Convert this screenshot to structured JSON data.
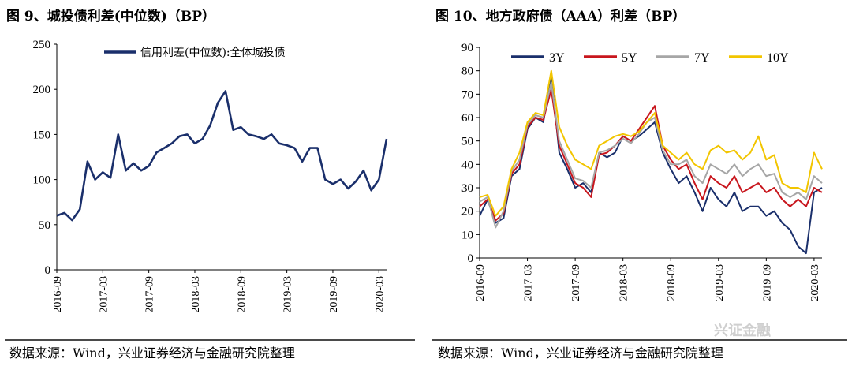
{
  "left": {
    "title": "图 9、城投债利差(中位数)（BP）",
    "source": "数据来源：Wind，兴业证券经济与金融研究院整理"
  },
  "right": {
    "title": "图 10、地方政府债（AAA）利差（BP）",
    "source": "数据来源：Wind，兴业证券经济与金融研究院整理"
  },
  "watermark": "兴证金融",
  "chart_data": [
    {
      "type": "line",
      "title": "",
      "xlabel": "",
      "ylabel": "",
      "ylim": [
        0,
        250
      ],
      "yticks": [
        0,
        50,
        100,
        150,
        200,
        250
      ],
      "xticks": [
        "2016-09",
        "2017-03",
        "2017-09",
        "2018-03",
        "2018-09",
        "2019-03",
        "2019-09",
        "2020-03"
      ],
      "xrange": [
        "2016-09",
        "2020-04"
      ],
      "legend_position": "top-right",
      "series": [
        {
          "name": "信用利差(中位数):全体城投债",
          "color": "#1a2f6b",
          "points": [
            [
              "2016-09",
              60
            ],
            [
              "2016-10",
              63
            ],
            [
              "2016-11",
              55
            ],
            [
              "2016-12",
              67
            ],
            [
              "2017-01",
              120
            ],
            [
              "2017-02",
              100
            ],
            [
              "2017-03",
              108
            ],
            [
              "2017-04",
              102
            ],
            [
              "2017-05",
              150
            ],
            [
              "2017-06",
              110
            ],
            [
              "2017-07",
              118
            ],
            [
              "2017-08",
              110
            ],
            [
              "2017-09",
              115
            ],
            [
              "2017-10",
              130
            ],
            [
              "2017-11",
              135
            ],
            [
              "2017-12",
              140
            ],
            [
              "2018-01",
              148
            ],
            [
              "2018-02",
              150
            ],
            [
              "2018-03",
              140
            ],
            [
              "2018-04",
              145
            ],
            [
              "2018-05",
              160
            ],
            [
              "2018-06",
              185
            ],
            [
              "2018-07",
              198
            ],
            [
              "2018-08",
              155
            ],
            [
              "2018-09",
              158
            ],
            [
              "2018-10",
              150
            ],
            [
              "2018-11",
              148
            ],
            [
              "2018-12",
              145
            ],
            [
              "2019-01",
              150
            ],
            [
              "2019-02",
              140
            ],
            [
              "2019-03",
              138
            ],
            [
              "2019-04",
              135
            ],
            [
              "2019-05",
              120
            ],
            [
              "2019-06",
              135
            ],
            [
              "2019-07",
              135
            ],
            [
              "2019-08",
              100
            ],
            [
              "2019-09",
              95
            ],
            [
              "2019-10",
              100
            ],
            [
              "2019-11",
              90
            ],
            [
              "2019-12",
              98
            ],
            [
              "2020-01",
              110
            ],
            [
              "2020-02",
              88
            ],
            [
              "2020-03",
              100
            ],
            [
              "2020-04",
              145
            ]
          ]
        }
      ]
    },
    {
      "type": "line",
      "title": "",
      "xlabel": "",
      "ylabel": "",
      "ylim": [
        0,
        90
      ],
      "yticks": [
        0,
        10,
        20,
        30,
        40,
        50,
        60,
        70,
        80,
        90
      ],
      "xticks": [
        "2016-09",
        "2017-03",
        "2017-09",
        "2018-03",
        "2018-09",
        "2019-03",
        "2019-09",
        "2020-03"
      ],
      "xrange": [
        "2016-09",
        "2020-04"
      ],
      "legend_position": "top",
      "series": [
        {
          "name": "3Y",
          "color": "#1a2f6b",
          "points": [
            [
              "2016-09",
              18
            ],
            [
              "2016-10",
              25
            ],
            [
              "2016-11",
              15
            ],
            [
              "2016-12",
              17
            ],
            [
              "2017-01",
              35
            ],
            [
              "2017-02",
              38
            ],
            [
              "2017-03",
              55
            ],
            [
              "2017-04",
              60
            ],
            [
              "2017-05",
              58
            ],
            [
              "2017-06",
              78
            ],
            [
              "2017-07",
              45
            ],
            [
              "2017-08",
              38
            ],
            [
              "2017-09",
              30
            ],
            [
              "2017-10",
              32
            ],
            [
              "2017-11",
              28
            ],
            [
              "2017-12",
              45
            ],
            [
              "2018-01",
              43
            ],
            [
              "2018-02",
              45
            ],
            [
              "2018-03",
              52
            ],
            [
              "2018-04",
              50
            ],
            [
              "2018-05",
              52
            ],
            [
              "2018-06",
              55
            ],
            [
              "2018-07",
              58
            ],
            [
              "2018-08",
              45
            ],
            [
              "2018-09",
              38
            ],
            [
              "2018-10",
              32
            ],
            [
              "2018-11",
              35
            ],
            [
              "2018-12",
              28
            ],
            [
              "2019-01",
              20
            ],
            [
              "2019-02",
              30
            ],
            [
              "2019-03",
              25
            ],
            [
              "2019-04",
              22
            ],
            [
              "2019-05",
              28
            ],
            [
              "2019-06",
              20
            ],
            [
              "2019-07",
              22
            ],
            [
              "2019-08",
              22
            ],
            [
              "2019-09",
              18
            ],
            [
              "2019-10",
              20
            ],
            [
              "2019-11",
              15
            ],
            [
              "2019-12",
              12
            ],
            [
              "2020-01",
              5
            ],
            [
              "2020-02",
              2
            ],
            [
              "2020-03",
              28
            ],
            [
              "2020-04",
              30
            ]
          ]
        },
        {
          "name": "5Y",
          "color": "#c8161d",
          "points": [
            [
              "2016-09",
              22
            ],
            [
              "2016-10",
              25
            ],
            [
              "2016-11",
              16
            ],
            [
              "2016-12",
              19
            ],
            [
              "2017-01",
              36
            ],
            [
              "2017-02",
              40
            ],
            [
              "2017-03",
              56
            ],
            [
              "2017-04",
              60
            ],
            [
              "2017-05",
              59
            ],
            [
              "2017-06",
              72
            ],
            [
              "2017-07",
              48
            ],
            [
              "2017-08",
              40
            ],
            [
              "2017-09",
              32
            ],
            [
              "2017-10",
              30
            ],
            [
              "2017-11",
              26
            ],
            [
              "2017-12",
              44
            ],
            [
              "2018-01",
              45
            ],
            [
              "2018-02",
              48
            ],
            [
              "2018-03",
              52
            ],
            [
              "2018-04",
              50
            ],
            [
              "2018-05",
              55
            ],
            [
              "2018-06",
              60
            ],
            [
              "2018-07",
              65
            ],
            [
              "2018-08",
              48
            ],
            [
              "2018-09",
              42
            ],
            [
              "2018-10",
              38
            ],
            [
              "2018-11",
              40
            ],
            [
              "2018-12",
              32
            ],
            [
              "2019-01",
              25
            ],
            [
              "2019-02",
              35
            ],
            [
              "2019-03",
              32
            ],
            [
              "2019-04",
              30
            ],
            [
              "2019-05",
              35
            ],
            [
              "2019-06",
              28
            ],
            [
              "2019-07",
              30
            ],
            [
              "2019-08",
              32
            ],
            [
              "2019-09",
              28
            ],
            [
              "2019-10",
              30
            ],
            [
              "2019-11",
              25
            ],
            [
              "2019-12",
              22
            ],
            [
              "2020-01",
              25
            ],
            [
              "2020-02",
              22
            ],
            [
              "2020-03",
              30
            ],
            [
              "2020-04",
              28
            ]
          ]
        },
        {
          "name": "7Y",
          "color": "#a6a6a6",
          "points": [
            [
              "2016-09",
              24
            ],
            [
              "2016-10",
              26
            ],
            [
              "2016-11",
              13
            ],
            [
              "2016-12",
              20
            ],
            [
              "2017-01",
              37
            ],
            [
              "2017-02",
              42
            ],
            [
              "2017-03",
              57
            ],
            [
              "2017-04",
              61
            ],
            [
              "2017-05",
              60
            ],
            [
              "2017-06",
              75
            ],
            [
              "2017-07",
              50
            ],
            [
              "2017-08",
              42
            ],
            [
              "2017-09",
              34
            ],
            [
              "2017-10",
              33
            ],
            [
              "2017-11",
              30
            ],
            [
              "2017-12",
              45
            ],
            [
              "2018-01",
              46
            ],
            [
              "2018-02",
              48
            ],
            [
              "2018-03",
              51
            ],
            [
              "2018-04",
              49
            ],
            [
              "2018-05",
              53
            ],
            [
              "2018-06",
              58
            ],
            [
              "2018-07",
              60
            ],
            [
              "2018-08",
              46
            ],
            [
              "2018-09",
              40
            ],
            [
              "2018-10",
              40
            ],
            [
              "2018-11",
              42
            ],
            [
              "2018-12",
              35
            ],
            [
              "2019-01",
              32
            ],
            [
              "2019-02",
              40
            ],
            [
              "2019-03",
              38
            ],
            [
              "2019-04",
              36
            ],
            [
              "2019-05",
              40
            ],
            [
              "2019-06",
              35
            ],
            [
              "2019-07",
              38
            ],
            [
              "2019-08",
              40
            ],
            [
              "2019-09",
              35
            ],
            [
              "2019-10",
              36
            ],
            [
              "2019-11",
              28
            ],
            [
              "2019-12",
              26
            ],
            [
              "2020-01",
              28
            ],
            [
              "2020-02",
              25
            ],
            [
              "2020-03",
              35
            ],
            [
              "2020-04",
              32
            ]
          ]
        },
        {
          "name": "10Y",
          "color": "#f2c500",
          "points": [
            [
              "2016-09",
              26
            ],
            [
              "2016-10",
              27
            ],
            [
              "2016-11",
              18
            ],
            [
              "2016-12",
              22
            ],
            [
              "2017-01",
              38
            ],
            [
              "2017-02",
              45
            ],
            [
              "2017-03",
              58
            ],
            [
              "2017-04",
              62
            ],
            [
              "2017-05",
              61
            ],
            [
              "2017-06",
              80
            ],
            [
              "2017-07",
              56
            ],
            [
              "2017-08",
              48
            ],
            [
              "2017-09",
              42
            ],
            [
              "2017-10",
              40
            ],
            [
              "2017-11",
              38
            ],
            [
              "2017-12",
              48
            ],
            [
              "2018-01",
              50
            ],
            [
              "2018-02",
              52
            ],
            [
              "2018-03",
              53
            ],
            [
              "2018-04",
              52
            ],
            [
              "2018-05",
              54
            ],
            [
              "2018-06",
              58
            ],
            [
              "2018-07",
              62
            ],
            [
              "2018-08",
              48
            ],
            [
              "2018-09",
              45
            ],
            [
              "2018-10",
              42
            ],
            [
              "2018-11",
              45
            ],
            [
              "2018-12",
              40
            ],
            [
              "2019-01",
              38
            ],
            [
              "2019-02",
              46
            ],
            [
              "2019-03",
              48
            ],
            [
              "2019-04",
              45
            ],
            [
              "2019-05",
              46
            ],
            [
              "2019-06",
              42
            ],
            [
              "2019-07",
              45
            ],
            [
              "2019-08",
              52
            ],
            [
              "2019-09",
              42
            ],
            [
              "2019-10",
              44
            ],
            [
              "2019-11",
              32
            ],
            [
              "2019-12",
              30
            ],
            [
              "2020-01",
              30
            ],
            [
              "2020-02",
              28
            ],
            [
              "2020-03",
              45
            ],
            [
              "2020-04",
              38
            ]
          ]
        }
      ]
    }
  ]
}
